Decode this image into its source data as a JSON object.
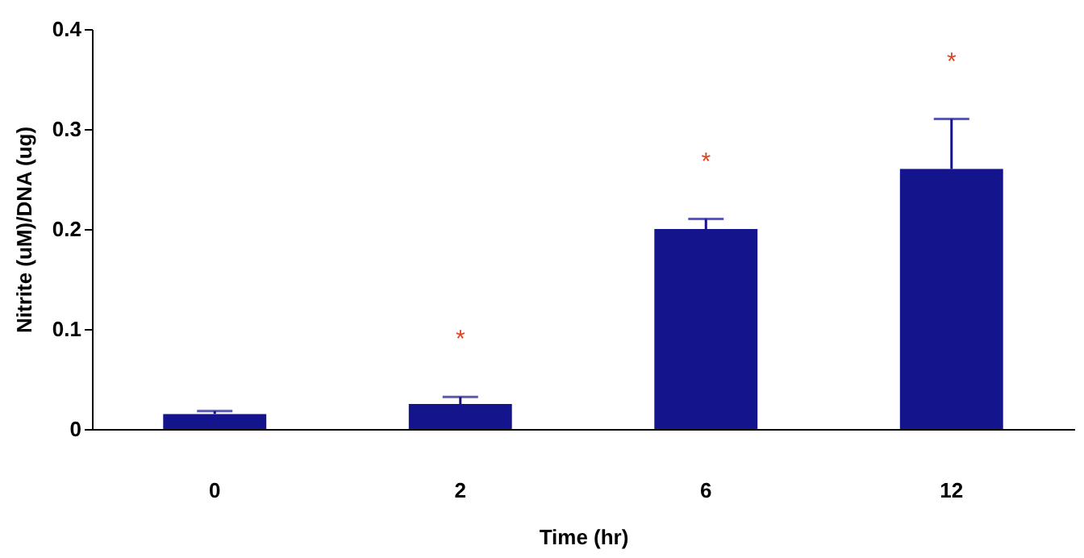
{
  "chart_data": {
    "type": "bar",
    "xlabel": "Time (hr)",
    "ylabel": "Nitrite (uM)/DNA (ug)",
    "categories": [
      "0",
      "2",
      "6",
      "12"
    ],
    "values": [
      0.015,
      0.025,
      0.2,
      0.26
    ],
    "errors": [
      [
        0.015,
        0.018
      ],
      [
        0.025,
        0.032
      ],
      [
        0.2,
        0.21
      ],
      [
        0.26,
        0.31
      ]
    ],
    "color": "#14148c",
    "ylim": [
      0,
      0.4
    ],
    "yticks": [
      0,
      0.1,
      0.2,
      0.3,
      0.4
    ],
    "annotations": [
      "*",
      "*",
      "*"
    ]
  }
}
